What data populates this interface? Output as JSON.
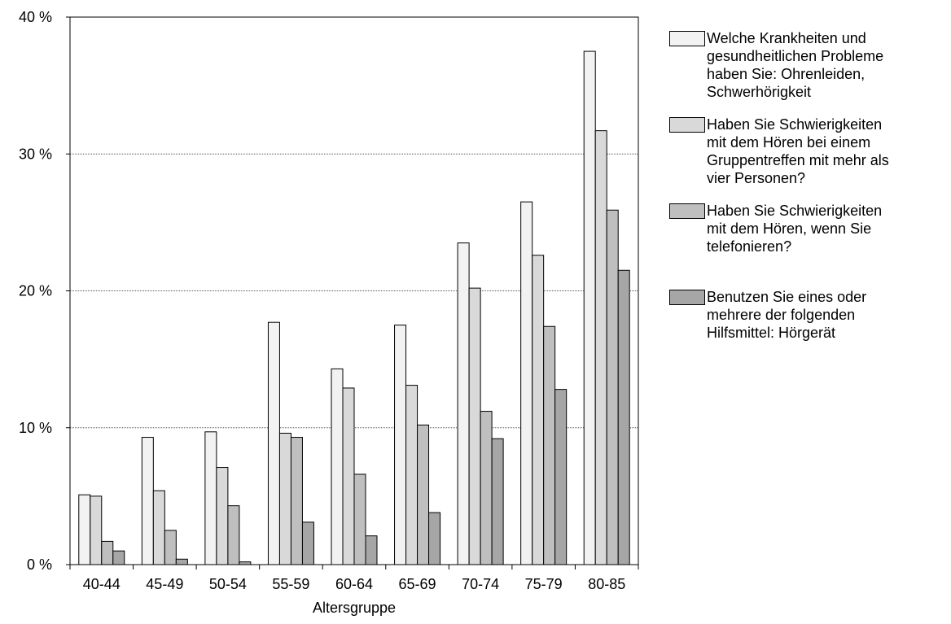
{
  "chart_data": {
    "type": "bar",
    "title": "",
    "xlabel": "Altersgruppe",
    "ylabel": "",
    "ylim": [
      0,
      40
    ],
    "yticks": [
      0,
      10,
      20,
      30,
      40
    ],
    "ytick_labels": [
      "0 %",
      "10 %",
      "20 %",
      "30 %",
      "40 %"
    ],
    "grid": "horizontal",
    "legend_position": "right",
    "categories": [
      "40-44",
      "45-49",
      "50-54",
      "55-59",
      "60-64",
      "65-69",
      "70-74",
      "75-79",
      "80-85"
    ],
    "series": [
      {
        "name": "Welche Krankheiten und gesundheitlichen  Probleme haben Sie: Ohrenleiden, Schwerhörigkeit",
        "color": "#f2f2f2",
        "values": [
          5.1,
          9.3,
          9.7,
          17.7,
          14.3,
          17.5,
          23.5,
          26.5,
          37.5
        ]
      },
      {
        "name": "Haben Sie Schwierigkeiten mit dem Hören  bei einem Gruppentreffen mit mehr als vier  Personen?",
        "color": "#d9d9d9",
        "values": [
          5.0,
          5.4,
          7.1,
          9.6,
          12.9,
          13.1,
          20.2,
          22.6,
          31.7
        ]
      },
      {
        "name": "Haben Sie Schwierigkeiten mit dem Hören,  wenn Sie telefonieren?",
        "color": "#bfbfbf",
        "values": [
          1.7,
          2.5,
          4.3,
          9.3,
          6.6,
          10.2,
          11.2,
          17.4,
          25.9
        ]
      },
      {
        "name": "Benutzen Sie eines oder mehrere der  folgenden Hilfsmittel: Hörgerät",
        "color": "#a6a6a6",
        "values": [
          1.0,
          0.4,
          0.2,
          3.1,
          2.1,
          3.8,
          9.2,
          12.8,
          21.5
        ]
      }
    ]
  },
  "legend": {
    "items": [
      {
        "text": "Welche Krankheiten und\ngesundheitlichen  Probleme\nhaben Sie: Ohrenleiden,\nSchwerhörigkeit",
        "color": "#f2f2f2"
      },
      {
        "text": "Haben Sie Schwierigkeiten\nmit dem Hören  bei einem\nGruppentreffen mit mehr als\nvier  Personen?",
        "color": "#d9d9d9"
      },
      {
        "text": "Haben Sie Schwierigkeiten\nmit dem Hören,  wenn Sie\ntelefonieren?",
        "color": "#bfbfbf"
      },
      {
        "text": "Benutzen Sie eines oder\nmehrere der  folgenden\nHilfsmittel: Hörgerät",
        "color": "#a6a6a6"
      }
    ]
  }
}
